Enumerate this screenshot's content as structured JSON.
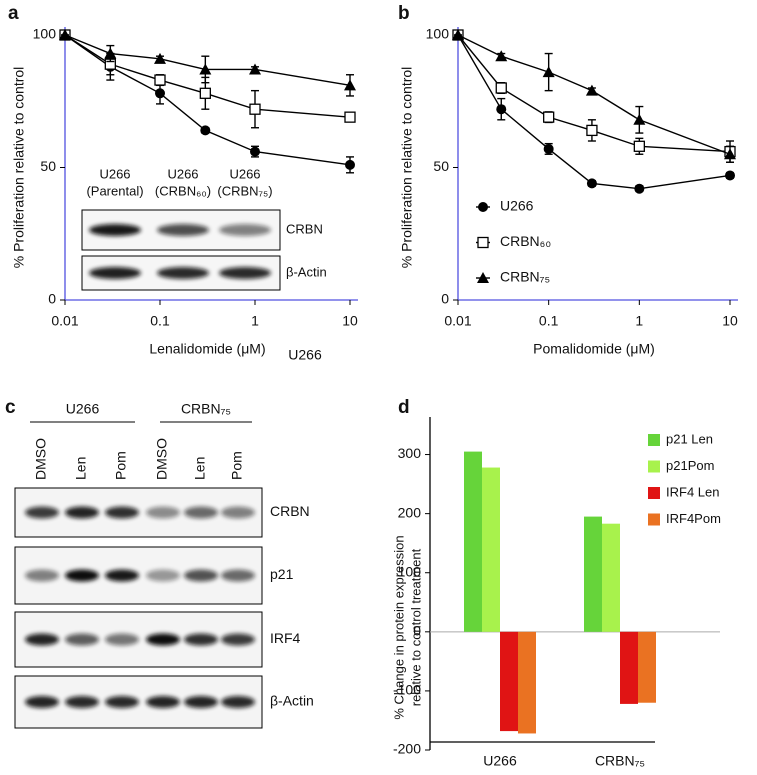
{
  "chart_data": [
    {
      "type": "line",
      "panel": "a",
      "ylabel": "% Proliferation relative to control",
      "xlabel": "Lenalidomide (μM)",
      "note": "U266",
      "xscale": "log",
      "axis_color": "#5050e0",
      "x": [
        0.01,
        0.03,
        0.1,
        0.3,
        1,
        10
      ],
      "xlim": [
        0.01,
        10
      ],
      "xticks": [
        0.01,
        0.1,
        1,
        10
      ],
      "ylim": [
        0,
        100
      ],
      "yticks": [
        0,
        50,
        100
      ],
      "series": [
        {
          "marker": "circle",
          "color": "#000000",
          "values": [
            100,
            88,
            78,
            64,
            56,
            51
          ],
          "errors": [
            0,
            5,
            4,
            1,
            2,
            3
          ]
        },
        {
          "marker": "square",
          "color": "#000000",
          "values": [
            100,
            89,
            83,
            78,
            72,
            69
          ],
          "errors": [
            0,
            4,
            2,
            6,
            7,
            1
          ]
        },
        {
          "marker": "triangle",
          "color": "#000000",
          "values": [
            100,
            93,
            91,
            87,
            87,
            81
          ],
          "errors": [
            0,
            3,
            1,
            5,
            1,
            4
          ]
        }
      ],
      "inset": {
        "lanes": [
          [
            "U266",
            "(Parental)"
          ],
          [
            "U266",
            "(CRBN₆₀)"
          ],
          [
            "U266",
            "(CRBN₇₅)"
          ]
        ],
        "rows": [
          "CRBN",
          "β-Actin"
        ]
      }
    },
    {
      "type": "line",
      "panel": "b",
      "ylabel": "% Proliferation relative to control",
      "xlabel": "Pomalidomide (μM)",
      "xscale": "log",
      "axis_color": "#5050e0",
      "legend": "lower left",
      "x": [
        0.01,
        0.03,
        0.1,
        0.3,
        1,
        10
      ],
      "xlim": [
        0.01,
        10
      ],
      "xticks": [
        0.01,
        0.1,
        1,
        10
      ],
      "ylim": [
        0,
        100
      ],
      "yticks": [
        0,
        50,
        100
      ],
      "series": [
        {
          "name": "U266",
          "marker": "circle",
          "color": "#000000",
          "values": [
            100,
            72,
            57,
            44,
            42,
            47
          ],
          "errors": [
            0,
            4,
            2,
            1,
            1,
            1
          ]
        },
        {
          "name": "CRBN₆₀",
          "marker": "square",
          "color": "#000000",
          "values": [
            100,
            80,
            69,
            64,
            58,
            56
          ],
          "errors": [
            0,
            2,
            2,
            4,
            3,
            4
          ]
        },
        {
          "name": "CRBN₇₅",
          "marker": "triangle",
          "color": "#000000",
          "values": [
            100,
            92,
            86,
            79,
            68,
            55
          ],
          "errors": [
            0,
            1,
            7,
            1,
            5,
            3
          ]
        }
      ]
    },
    {
      "type": "bar",
      "panel": "d",
      "ylabel": [
        "% Change in protein expression",
        "relative to control treatment"
      ],
      "axis_color": "#000000",
      "legend": "upper right",
      "categories": [
        "U266",
        "CRBN₇₅"
      ],
      "ylim": [
        -200,
        350
      ],
      "yticks": [
        -200,
        -100,
        0,
        100,
        200,
        300
      ],
      "series": [
        {
          "name": "p21 Len",
          "color": "#66d43a",
          "values": [
            305,
            195
          ]
        },
        {
          "name": "p21Pom",
          "color": "#a8f24c",
          "values": [
            278,
            183
          ]
        },
        {
          "name": "IRF4 Len",
          "color": "#e01414",
          "values": [
            -168,
            -122
          ]
        },
        {
          "name": "IRF4Pom",
          "color": "#ea7222",
          "values": [
            -172,
            -120
          ]
        }
      ]
    }
  ],
  "blot": {
    "panel": "c",
    "groups": [
      "U266",
      "CRBN₇₅"
    ],
    "lanes": [
      "DMSO",
      "Len",
      "Pom",
      "DMSO",
      "Len",
      "Pom"
    ],
    "rows": [
      "CRBN",
      "p21",
      "IRF4",
      "β-Actin"
    ]
  }
}
